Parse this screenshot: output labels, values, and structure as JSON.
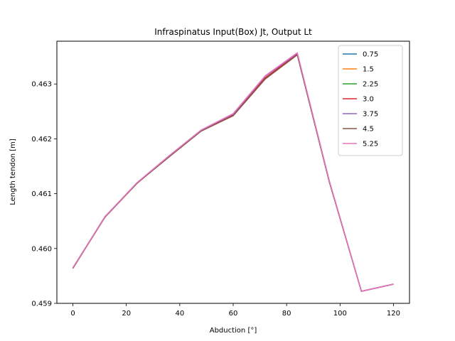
{
  "chart_data": {
    "type": "line",
    "title": "Infraspinatus Input(Box) Jt, Output Lt",
    "xlabel": "Abduction [°]",
    "ylabel": "Length tendon [m]",
    "xlim": [
      -6,
      126
    ],
    "ylim": [
      0.459,
      0.46378
    ],
    "xticks": [
      0,
      20,
      40,
      60,
      80,
      100,
      120
    ],
    "xtick_labels": [
      "0",
      "20",
      "40",
      "60",
      "80",
      "100",
      "120"
    ],
    "yticks": [
      0.459,
      0.46,
      0.461,
      0.462,
      0.463
    ],
    "ytick_labels": [
      "0.459",
      "0.460",
      "0.461",
      "0.462",
      "0.463"
    ],
    "grid": false,
    "legend_position": "top-right",
    "x": [
      0,
      12,
      24,
      36,
      48,
      60,
      72,
      84,
      96,
      108,
      120
    ],
    "series": [
      {
        "name": "0.75",
        "color": "#1f77b4",
        "values": [
          0.45964,
          0.46058,
          0.46119,
          0.46168,
          0.46215,
          0.46243,
          0.4631,
          0.46354,
          0.46122,
          0.45922,
          0.45935
        ]
      },
      {
        "name": "1.5",
        "color": "#ff7f0e",
        "values": [
          0.45964,
          0.46058,
          0.46119,
          0.46168,
          0.46215,
          0.46243,
          0.46311,
          0.46354,
          0.46122,
          0.45922,
          0.45935
        ]
      },
      {
        "name": "2.25",
        "color": "#2ca02c",
        "values": [
          0.45964,
          0.46058,
          0.46119,
          0.46168,
          0.46215,
          0.46243,
          0.46311,
          0.46354,
          0.46122,
          0.45922,
          0.45935
        ]
      },
      {
        "name": "3.0",
        "color": "#d62728",
        "values": [
          0.45964,
          0.46058,
          0.46119,
          0.46168,
          0.46215,
          0.46243,
          0.46311,
          0.46355,
          0.46122,
          0.45922,
          0.45935
        ]
      },
      {
        "name": "3.75",
        "color": "#9467bd",
        "values": [
          0.45965,
          0.46058,
          0.4612,
          0.46169,
          0.46216,
          0.46245,
          0.46314,
          0.46356,
          0.46123,
          0.45922,
          0.45935
        ]
      },
      {
        "name": "4.5",
        "color": "#8c564b",
        "values": [
          0.45964,
          0.46057,
          0.46119,
          0.46167,
          0.46214,
          0.46242,
          0.46309,
          0.46353,
          0.46121,
          0.45922,
          0.45935
        ]
      },
      {
        "name": "5.25",
        "color": "#e377c2",
        "values": [
          0.45965,
          0.46058,
          0.4612,
          0.46169,
          0.46216,
          0.46246,
          0.46315,
          0.46357,
          0.46123,
          0.45922,
          0.45935
        ]
      }
    ]
  }
}
